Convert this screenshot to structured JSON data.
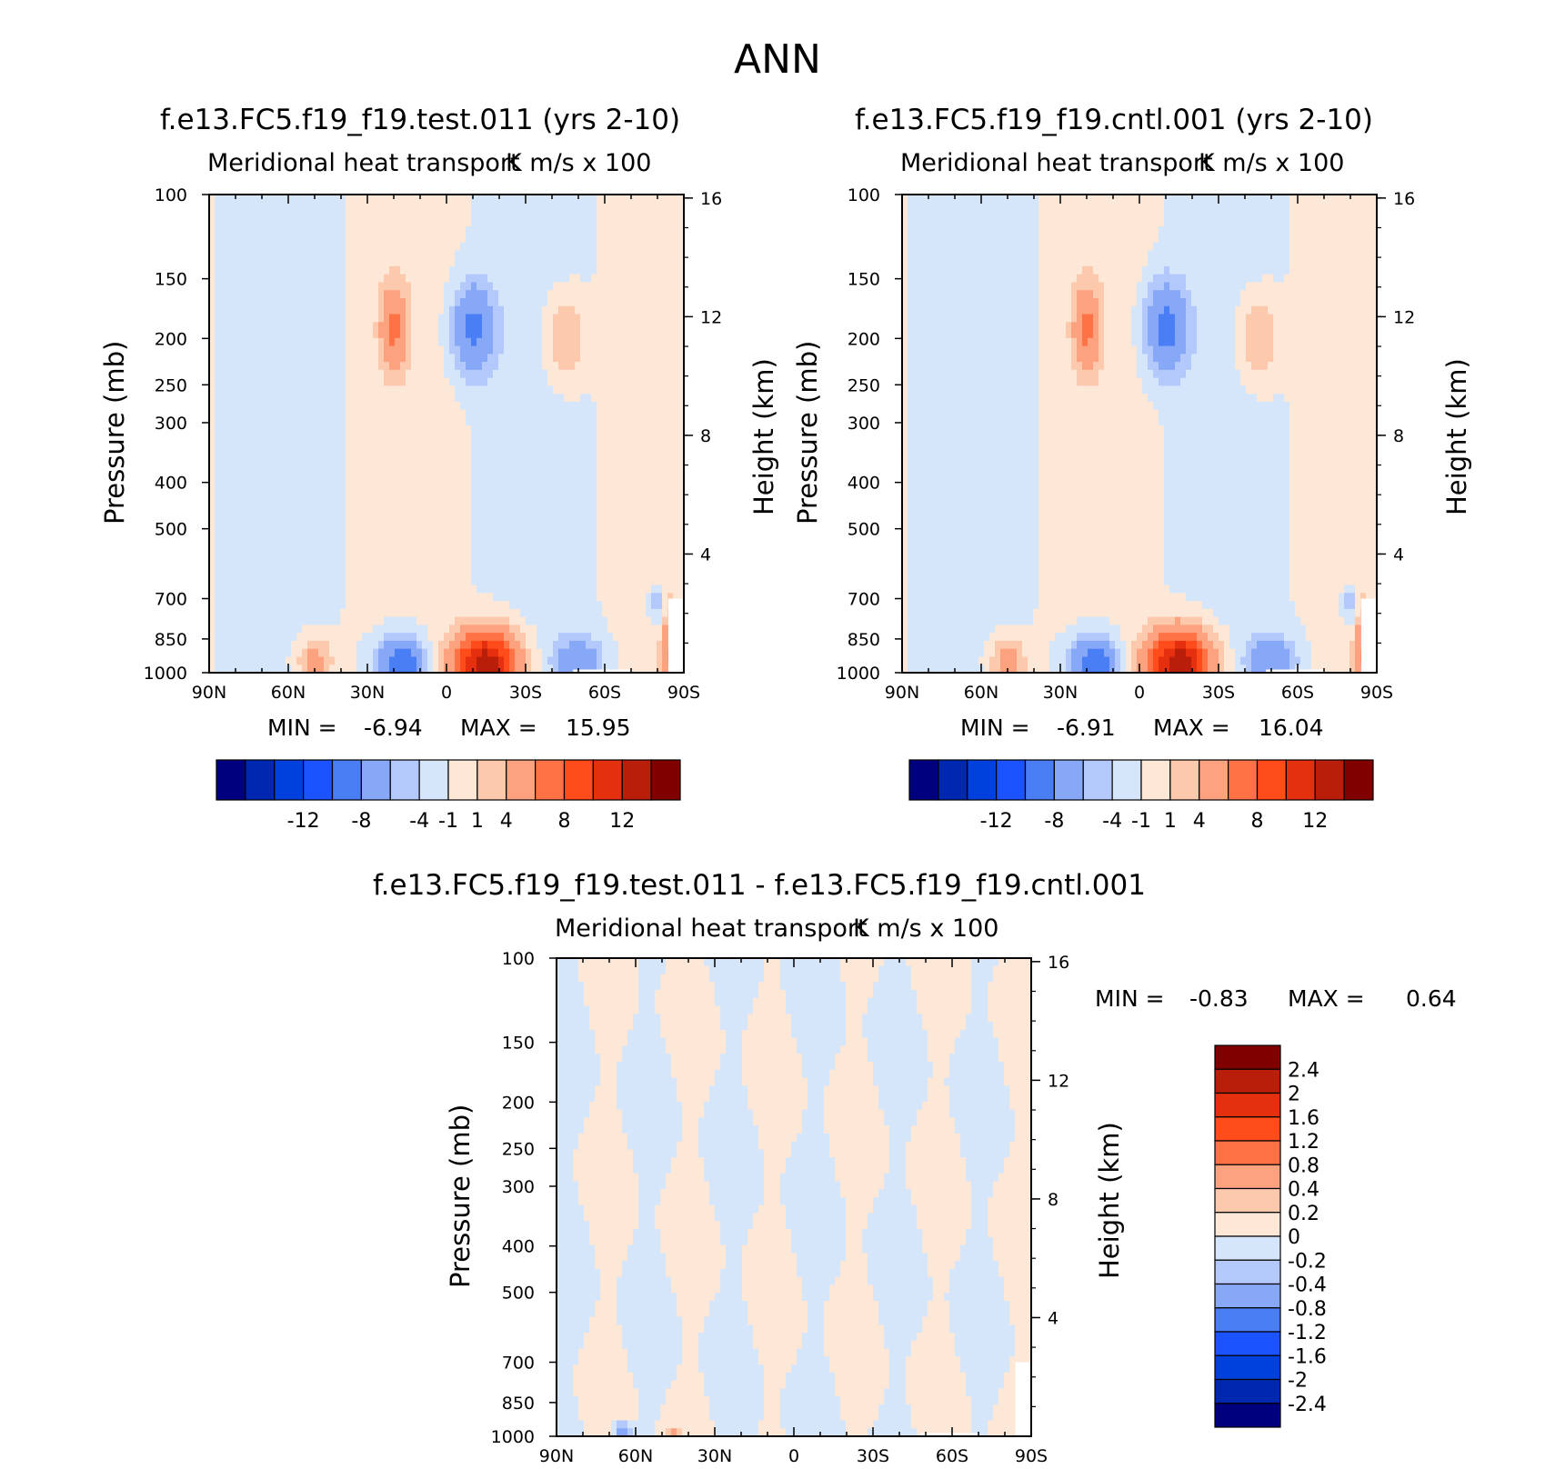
{
  "page_title": "ANN",
  "colors": {
    "neg": [
      "#00007f",
      "#0027b0",
      "#0040dd",
      "#1a53ff",
      "#4a7ef5",
      "#86a8f7",
      "#b3c9fb",
      "#d6e6fa"
    ],
    "pos": [
      "#fde7d6",
      "#fcc9ad",
      "#fca27f",
      "#ff7245",
      "#ff4c1a",
      "#e53010",
      "#b81e0a",
      "#800000"
    ]
  },
  "panels": [
    {
      "title": "f.e13.FC5.f19_f19.test.011 (yrs 2-10)",
      "long_name": "Meridional heat transport",
      "units": "K m/s x 100",
      "ylabel": "Pressure (mb)",
      "ylabel_right": "Height (km)",
      "min_label": "MIN =",
      "min_value": "-6.94",
      "max_label": "MAX =",
      "max_value": "15.95"
    },
    {
      "title": "f.e13.FC5.f19_f19.cntl.001 (yrs 2-10)",
      "long_name": "Meridional heat transport",
      "units": "K m/s x 100",
      "ylabel": "Pressure (mb)",
      "ylabel_right": "Height (km)",
      "min_label": "MIN =",
      "min_value": "-6.91",
      "max_label": "MAX =",
      "max_value": "16.04"
    },
    {
      "title": "f.e13.FC5.f19_f19.test.011 - f.e13.FC5.f19_f19.cntl.001",
      "long_name": "Meridional heat transport",
      "units": "K m/s x 100",
      "ylabel": "Pressure (mb)",
      "ylabel_right": "Height (km)",
      "min_label": "MIN =",
      "min_value": "-0.83",
      "max_label": "MAX =",
      "max_value": "0.64"
    }
  ],
  "chart_data": [
    {
      "type": "heatmap",
      "title": "f.e13.FC5.f19_f19.test.011 (yrs 2-10)",
      "xlabel": "",
      "ylabel": "Pressure (mb)",
      "y2label": "Height (km)",
      "x_ticks": [
        "90N",
        "60N",
        "30N",
        "0",
        "30S",
        "60S",
        "90S"
      ],
      "x_range": [
        90,
        -90
      ],
      "y_ticks": [
        100,
        150,
        200,
        250,
        300,
        400,
        500,
        700,
        850,
        1000
      ],
      "y_range": [
        100,
        1000
      ],
      "y_scale": "log",
      "y2_ticks": [
        16,
        12,
        8,
        4
      ],
      "min": -6.94,
      "max": 15.95,
      "colorbar_ticks": [
        "-12",
        "-8",
        "-4",
        "-1",
        "1",
        "4",
        "8",
        "12"
      ],
      "features": [
        {
          "lat": -15,
          "p": 960,
          "v": 11.5,
          "sx": 12,
          "sp": 0.16
        },
        {
          "lat": 17,
          "p": 970,
          "v": -6.2,
          "sx": 9,
          "sp": 0.14
        },
        {
          "lat": -50,
          "p": 950,
          "v": -3.6,
          "sx": 9,
          "sp": 0.12
        },
        {
          "lat": 50,
          "p": 950,
          "v": 2.8,
          "sx": 7,
          "sp": 0.12
        },
        {
          "lat": -85,
          "p": 920,
          "v": 6.0,
          "sx": 3,
          "sp": 0.2
        },
        {
          "lat": -80,
          "p": 720,
          "v": -2.2,
          "sx": 3,
          "sp": 0.08
        },
        {
          "lat": 20,
          "p": 190,
          "v": 4.0,
          "sx": 5,
          "sp": 0.2
        },
        {
          "lat": -10,
          "p": 190,
          "v": -4.5,
          "sx": 8,
          "sp": 0.22
        },
        {
          "lat": -45,
          "p": 200,
          "v": 2.4,
          "sx": 8,
          "sp": 0.22
        }
      ]
    },
    {
      "type": "heatmap",
      "title": "f.e13.FC5.f19_f19.cntl.001 (yrs 2-10)",
      "xlabel": "",
      "ylabel": "Pressure (mb)",
      "y2label": "Height (km)",
      "x_ticks": [
        "90N",
        "60N",
        "30N",
        "0",
        "30S",
        "60S",
        "90S"
      ],
      "x_range": [
        90,
        -90
      ],
      "y_ticks": [
        100,
        150,
        200,
        250,
        300,
        400,
        500,
        700,
        850,
        1000
      ],
      "y_range": [
        100,
        1000
      ],
      "y_scale": "log",
      "y2_ticks": [
        16,
        12,
        8,
        4
      ],
      "min": -6.91,
      "max": 16.04,
      "colorbar_ticks": [
        "-12",
        "-8",
        "-4",
        "-1",
        "1",
        "4",
        "8",
        "12"
      ],
      "features": [
        {
          "lat": -15,
          "p": 960,
          "v": 11.7,
          "sx": 12,
          "sp": 0.16
        },
        {
          "lat": 17,
          "p": 970,
          "v": -6.1,
          "sx": 9,
          "sp": 0.14
        },
        {
          "lat": -50,
          "p": 950,
          "v": -3.7,
          "sx": 9,
          "sp": 0.12
        },
        {
          "lat": 50,
          "p": 950,
          "v": 2.9,
          "sx": 7,
          "sp": 0.12
        },
        {
          "lat": -85,
          "p": 920,
          "v": 6.0,
          "sx": 3,
          "sp": 0.2
        },
        {
          "lat": -80,
          "p": 720,
          "v": -2.2,
          "sx": 3,
          "sp": 0.08
        },
        {
          "lat": 20,
          "p": 190,
          "v": 4.0,
          "sx": 5,
          "sp": 0.2
        },
        {
          "lat": -10,
          "p": 190,
          "v": -4.7,
          "sx": 8,
          "sp": 0.22
        },
        {
          "lat": -45,
          "p": 200,
          "v": 2.4,
          "sx": 8,
          "sp": 0.22
        }
      ]
    },
    {
      "type": "heatmap",
      "title": "f.e13.FC5.f19_f19.test.011 - f.e13.FC5.f19_f19.cntl.001",
      "xlabel": "",
      "ylabel": "Pressure (mb)",
      "y2label": "Height (km)",
      "x_ticks": [
        "90N",
        "60N",
        "30N",
        "0",
        "30S",
        "60S",
        "90S"
      ],
      "x_range": [
        90,
        -90
      ],
      "y_ticks": [
        100,
        150,
        200,
        250,
        300,
        400,
        500,
        700,
        850,
        1000
      ],
      "y_range": [
        100,
        1000
      ],
      "y_scale": "log",
      "y2_ticks": [
        16,
        12,
        8,
        4
      ],
      "min": -0.83,
      "max": 0.64,
      "colorbar_ticks": [
        "2.4",
        "2",
        "1.6",
        "1.2",
        "0.8",
        "0.4",
        "0.2",
        "0",
        "-0.2",
        "-0.4",
        "-0.8",
        "-1.2",
        "-1.6",
        "-2",
        "-2.4"
      ],
      "features": [
        {
          "lat": 65,
          "p": 985,
          "v": -0.7,
          "sx": 3,
          "sp": 0.05
        },
        {
          "lat": 45,
          "p": 990,
          "v": 0.4,
          "sx": 3,
          "sp": 0.04
        }
      ]
    }
  ]
}
